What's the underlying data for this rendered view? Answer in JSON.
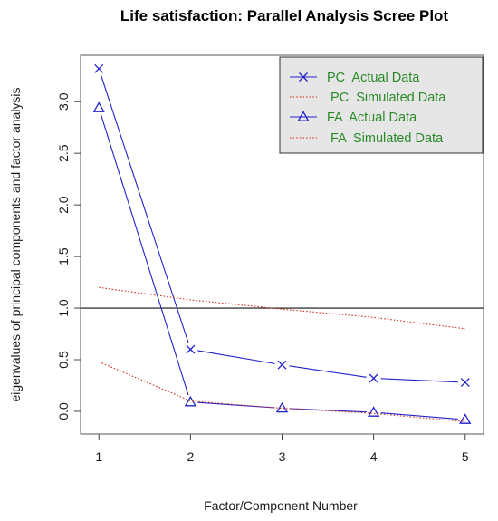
{
  "chart_data": {
    "type": "line",
    "title": "Life satisfaction: Parallel Analysis Scree Plot",
    "xlabel": "Factor/Component Number",
    "ylabel": "eigenvalues of principal components and factor analysis",
    "x": [
      1,
      2,
      3,
      4,
      5
    ],
    "xlim": [
      0.8,
      5.2
    ],
    "ylim": [
      -0.22,
      3.45
    ],
    "xticks": [
      "1",
      "2",
      "3",
      "4",
      "5"
    ],
    "yticks": [
      0.0,
      0.5,
      1.0,
      1.5,
      2.0,
      2.5,
      3.0
    ],
    "ytick_labels": [
      "0.0",
      "0.5",
      "1.0",
      "1.5",
      "2.0",
      "2.5",
      "3.0"
    ],
    "reference_line": 1.0,
    "legend_position": "top-right",
    "series": [
      {
        "name": "PC  Actual Data",
        "values": [
          3.32,
          0.6,
          0.45,
          0.32,
          0.28
        ],
        "color": "#2222cc",
        "style": "solid",
        "marker": "x"
      },
      {
        "name": " PC  Simulated Data",
        "values": [
          1.2,
          1.08,
          0.99,
          0.91,
          0.8
        ],
        "color": "#cc3322",
        "style": "dotted",
        "marker": "none"
      },
      {
        "name": "FA  Actual Data",
        "values": [
          2.94,
          0.09,
          0.03,
          -0.01,
          -0.08
        ],
        "color": "#2222cc",
        "style": "solid",
        "marker": "triangle"
      },
      {
        "name": " FA  Simulated Data",
        "values": [
          0.48,
          0.1,
          0.03,
          -0.02,
          -0.1
        ],
        "color": "#cc3322",
        "style": "dotted",
        "marker": "none"
      }
    ]
  }
}
